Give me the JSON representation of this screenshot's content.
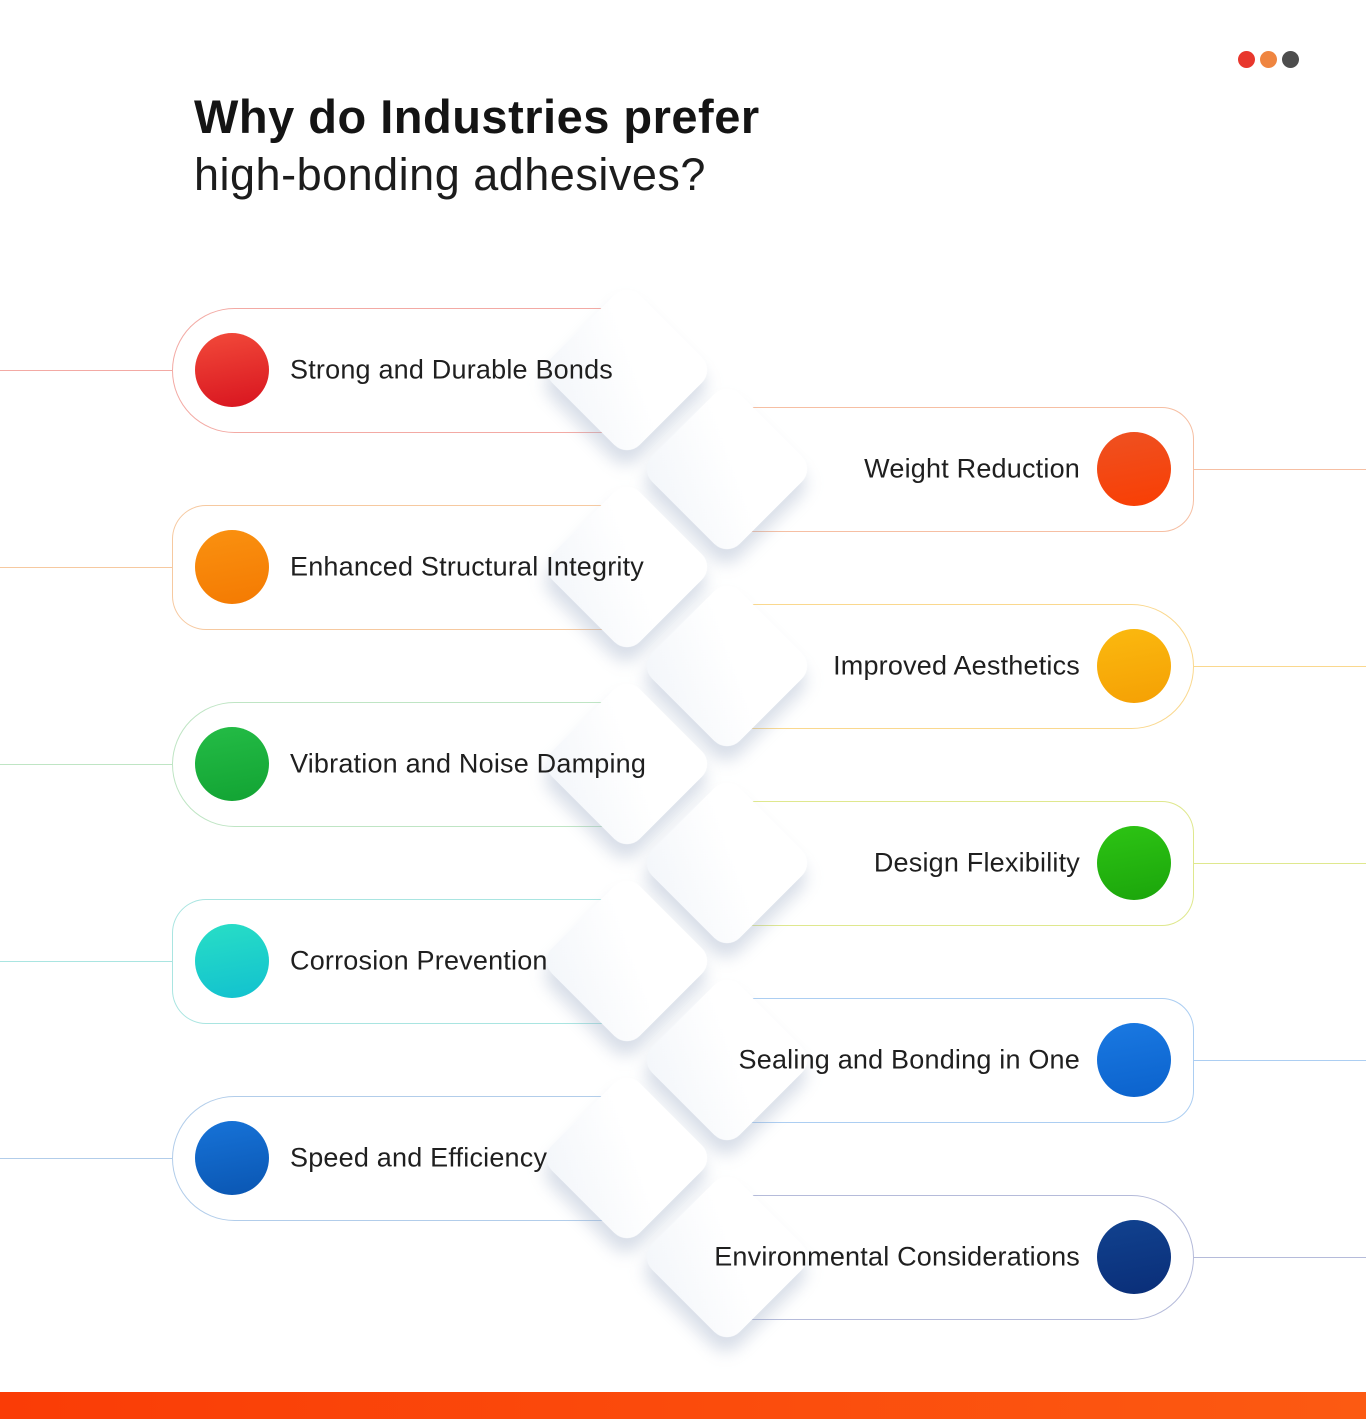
{
  "title": {
    "line1": "Why do Industries prefer",
    "line2": "high-bonding adhesives?"
  },
  "decor_dots": [
    {
      "name": "red",
      "color": "#e8372d"
    },
    {
      "name": "orange",
      "color": "#ef8540"
    },
    {
      "name": "gray",
      "color": "#4d4d4d"
    }
  ],
  "items": [
    {
      "label": "Strong and Durable Bonds",
      "side": "left",
      "cap": "round",
      "outline": "#f3aaa4",
      "circle_from": "#f24a3a",
      "circle_to": "#d8141f"
    },
    {
      "label": "Weight Reduction",
      "side": "right",
      "cap": "rect",
      "outline": "#f6bfa3",
      "circle_from": "#ee5122",
      "circle_to": "#f93e03"
    },
    {
      "label": "Enhanced Structural Integrity",
      "side": "left",
      "cap": "rect",
      "outline": "#f6c9a0",
      "circle_from": "#fa9110",
      "circle_to": "#f47a02"
    },
    {
      "label": "Improved Aesthetics",
      "side": "right",
      "cap": "round",
      "outline": "#fad88e",
      "circle_from": "#fbb90f",
      "circle_to": "#f5a004"
    },
    {
      "label": "Vibration and Noise Damping",
      "side": "left",
      "cap": "round",
      "outline": "#bfe5c4",
      "circle_from": "#24bc46",
      "circle_to": "#12a333"
    },
    {
      "label": "Design Flexibility",
      "side": "right",
      "cap": "rect",
      "outline": "#dfe88e",
      "circle_from": "#2dc414",
      "circle_to": "#1ba50b"
    },
    {
      "label": "Corrosion Prevention",
      "side": "left",
      "cap": "rect",
      "outline": "#a9e5e1",
      "circle_from": "#28dec6",
      "circle_to": "#12c1cf"
    },
    {
      "label": "Sealing and Bonding in One",
      "side": "right",
      "cap": "rect",
      "outline": "#accef2",
      "circle_from": "#1a79e2",
      "circle_to": "#0b62cc"
    },
    {
      "label": "Speed and Efficiency",
      "side": "left",
      "cap": "round",
      "outline": "#b2cdea",
      "circle_from": "#1773d8",
      "circle_to": "#0a56b2"
    },
    {
      "label": "Environmental Considerations",
      "side": "right",
      "cap": "round",
      "outline": "#b5bbda",
      "circle_from": "#11428f",
      "circle_to": "#0a2e78"
    }
  ],
  "footer": {
    "color_left": "#fa3c06",
    "color_right": "#fc5a12"
  }
}
